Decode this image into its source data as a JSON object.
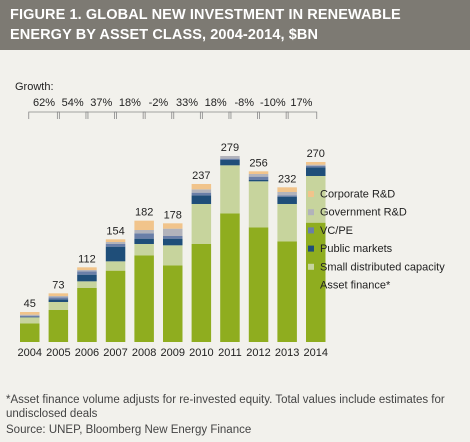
{
  "chart_data": {
    "type": "bar",
    "stacked": true,
    "title": "FIGURE 1. GLOBAL NEW INVESTMENT IN RENEWABLE ENERGY BY ASSET CLASS, 2004-2014, $BN",
    "categories": [
      "2004",
      "2005",
      "2006",
      "2007",
      "2008",
      "2009",
      "2010",
      "2011",
      "2012",
      "2013",
      "2014"
    ],
    "totals": [
      45,
      73,
      112,
      154,
      182,
      178,
      237,
      279,
      256,
      232,
      270
    ],
    "growth_label": "Growth:",
    "growth": [
      "62%",
      "54%",
      "37%",
      "18%",
      "-2%",
      "33%",
      "18%",
      "-8%",
      "-10%",
      "17%"
    ],
    "series": [
      {
        "name": "Asset finance*",
        "color": "#8fad1f",
        "values": [
          28,
          48,
          81,
          107,
          130,
          115,
          147,
          193,
          172,
          151,
          179
        ]
      },
      {
        "name": "Small distributed capacity",
        "color": "#c7d49d",
        "values": [
          9,
          12,
          10,
          14,
          17,
          30,
          60,
          72,
          69,
          56,
          70
        ]
      },
      {
        "name": "Public markets",
        "color": "#1f4e79",
        "values": [
          0.5,
          4,
          10,
          22,
          8,
          10,
          13,
          8,
          2,
          11,
          13
        ]
      },
      {
        "name": "VC/PE",
        "color": "#6a7fa8",
        "values": [
          1.5,
          3,
          5,
          4,
          8,
          4,
          4,
          2,
          5,
          2,
          2
        ]
      },
      {
        "name": "Government R&D",
        "color": "#b2b3bb",
        "values": [
          2,
          2,
          2,
          3,
          5,
          11,
          5,
          4,
          4,
          5,
          2
        ]
      },
      {
        "name": "Corporate R&D",
        "color": "#f1c48b",
        "values": [
          4,
          4,
          4,
          4,
          14,
          8,
          8,
          0,
          4,
          7,
          4
        ]
      }
    ],
    "ylim": [
      0,
      300
    ],
    "legend_position": "right",
    "grid": false
  },
  "footnote": "*Asset finance volume adjusts for re-invested equity.  Total values include estimates for undisclosed deals",
  "source": "Source: UNEP, Bloomberg New Energy Finance"
}
